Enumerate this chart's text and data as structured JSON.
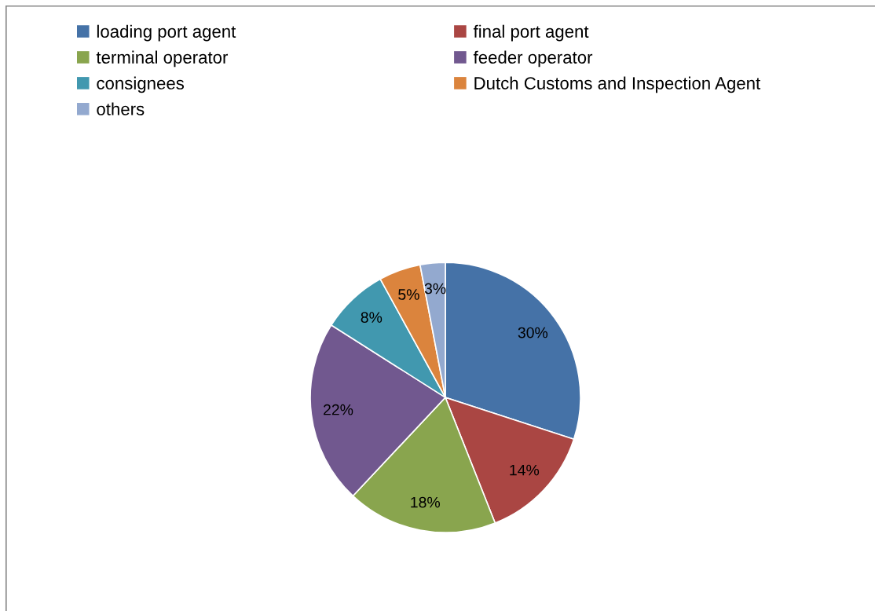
{
  "chart_data": {
    "type": "pie",
    "categories": [
      "loading port agent",
      "final port agent",
      "terminal operator",
      "feeder operator",
      "consignees",
      "Dutch Customs and Inspection Agent",
      "others"
    ],
    "values": [
      30,
      14,
      18,
      22,
      8,
      5,
      3
    ],
    "value_labels": [
      "30%",
      "14%",
      "18%",
      "22%",
      "8%",
      "5%",
      "3%"
    ],
    "colors": [
      "#4572a7",
      "#aa4643",
      "#89a54e",
      "#71588f",
      "#4198af",
      "#db843d",
      "#93a9cf"
    ],
    "legend": "top left"
  }
}
